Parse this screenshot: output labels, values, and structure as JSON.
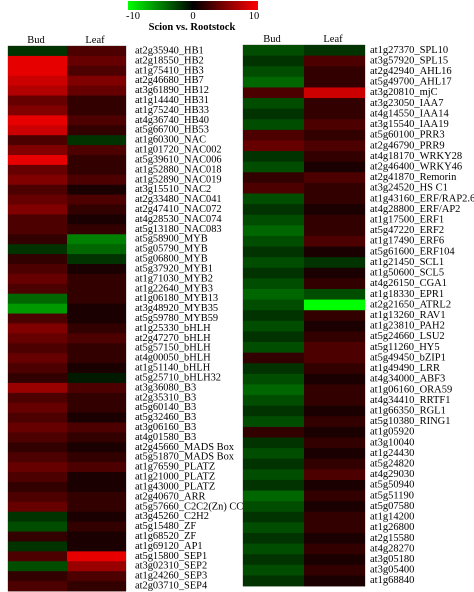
{
  "chart_data": {
    "type": "heatmap",
    "title": "Scion vs. Rootstock",
    "color_scale": {
      "min": -10,
      "mid": 0,
      "max": 10,
      "low_color": "#00ff00",
      "mid_color": "#000000",
      "high_color": "#ff0000",
      "tick_labels": [
        "-10",
        "0",
        "10"
      ]
    },
    "columns": [
      "Bud",
      "Leaf"
    ],
    "panels": [
      {
        "rows": [
          {
            "label": "at2g35940_HB1",
            "values": [
              -2,
              3
            ]
          },
          {
            "label": "at2g18550_HB2",
            "values": [
              9,
              4
            ]
          },
          {
            "label": "at1g75410_HB3",
            "values": [
              9,
              3
            ]
          },
          {
            "label": "at2g46680_HB7",
            "values": [
              8,
              5
            ]
          },
          {
            "label": "at3g61890_HB12",
            "values": [
              7,
              4
            ]
          },
          {
            "label": "at1g14440_HB31",
            "values": [
              4,
              2
            ]
          },
          {
            "label": "at1g75240_HB33",
            "values": [
              5,
              2
            ]
          },
          {
            "label": "at4g36740_HB40",
            "values": [
              9,
              3
            ]
          },
          {
            "label": "at5g66700_HB53",
            "values": [
              8,
              2
            ]
          },
          {
            "label": "at1g60300_NAC",
            "values": [
              3,
              -2
            ]
          },
          {
            "label": "at1g01720_NAC002",
            "values": [
              5,
              3
            ]
          },
          {
            "label": "at5g39610_NAC006",
            "values": [
              9,
              2
            ]
          },
          {
            "label": "at1g52880_NAC018",
            "values": [
              4,
              2
            ]
          },
          {
            "label": "at1g52890_NAC019",
            "values": [
              5,
              3
            ]
          },
          {
            "label": "at3g15510_NAC2",
            "values": [
              3,
              1
            ]
          },
          {
            "label": "at2g33480_NAC041",
            "values": [
              4,
              3
            ]
          },
          {
            "label": "at2g47410_NAC072",
            "values": [
              5,
              2
            ]
          },
          {
            "label": "at4g28530_NAC074",
            "values": [
              3,
              1
            ]
          },
          {
            "label": "at5g13180_NAC083",
            "values": [
              3,
              2
            ]
          },
          {
            "label": "at5g58900_MYB",
            "values": [
              2,
              -5
            ]
          },
          {
            "label": "at5g05790_MYB",
            "values": [
              -2,
              -4
            ]
          },
          {
            "label": "at5g06800_MYB",
            "values": [
              2,
              -2
            ]
          },
          {
            "label": "at5g37920_MYB1",
            "values": [
              3,
              1
            ]
          },
          {
            "label": "at1g71030_MYB2",
            "values": [
              4,
              2
            ]
          },
          {
            "label": "at1g22640_MYB3",
            "values": [
              3,
              2
            ]
          },
          {
            "label": "at1g06180_MYB13",
            "values": [
              -4,
              2
            ]
          },
          {
            "label": "at3g48920_MYB35",
            "values": [
              -6,
              1
            ]
          },
          {
            "label": "at5g59780_MYB59",
            "values": [
              3,
              1
            ]
          },
          {
            "label": "at1g25330_bHLH",
            "values": [
              5,
              2
            ]
          },
          {
            "label": "at2g47270_bHLH",
            "values": [
              4,
              3
            ]
          },
          {
            "label": "at5g57150_bHLH",
            "values": [
              3,
              2
            ]
          },
          {
            "label": "at4g00050_bHLH",
            "values": [
              4,
              2
            ]
          },
          {
            "label": "at1g51140_bHLH",
            "values": [
              3,
              1
            ]
          },
          {
            "label": "at5g25710_bHLH32",
            "values": [
              2,
              -1
            ]
          },
          {
            "label": "at3g36080_B3",
            "values": [
              6,
              3
            ]
          },
          {
            "label": "at2g35310_B3",
            "values": [
              3,
              2
            ]
          },
          {
            "label": "at5g60140_B3",
            "values": [
              4,
              2
            ]
          },
          {
            "label": "at5g32460_B3",
            "values": [
              3,
              1
            ]
          },
          {
            "label": "at3g06160_B3",
            "values": [
              4,
              3
            ]
          },
          {
            "label": "at4g01580_B3",
            "values": [
              3,
              2
            ]
          },
          {
            "label": "at2g45660_MADS Box",
            "values": [
              2,
              1
            ]
          },
          {
            "label": "at5g51870_MADS Box",
            "values": [
              3,
              2
            ]
          },
          {
            "label": "at1g76590_PLATZ",
            "values": [
              4,
              3
            ]
          },
          {
            "label": "at1g21000_PLATZ",
            "values": [
              3,
              1
            ]
          },
          {
            "label": "at1g43000_PLATZ",
            "values": [
              2,
              1
            ]
          },
          {
            "label": "at2g40670_ARR",
            "values": [
              3,
              2
            ]
          },
          {
            "label": "at5g57660_C2C2(Zn) CC",
            "values": [
              4,
              2
            ]
          },
          {
            "label": "at3g45260_C2H2",
            "values": [
              -2,
              1
            ]
          },
          {
            "label": "at5g15480_ZF",
            "values": [
              -3,
              2
            ]
          },
          {
            "label": "at1g68520_ZF",
            "values": [
              2,
              1
            ]
          },
          {
            "label": "at1g69120_AP1",
            "values": [
              -2,
              1
            ]
          },
          {
            "label": "at5g15800_SEP1",
            "values": [
              3,
              9
            ]
          },
          {
            "label": "at3g02310_SEP2",
            "values": [
              -3,
              6
            ]
          },
          {
            "label": "at1g24260_SEP3",
            "values": [
              2,
              3
            ]
          },
          {
            "label": "at2g03710_SEP4",
            "values": [
              3,
              2
            ]
          }
        ]
      },
      {
        "rows": [
          {
            "label": "at1g27370_SPL10",
            "values": [
              -3,
              -2
            ]
          },
          {
            "label": "at3g57920_SPL15",
            "values": [
              -2,
              3
            ]
          },
          {
            "label": "at2g42940_AHL16",
            "values": [
              -3,
              2
            ]
          },
          {
            "label": "at5g49700_AHL17",
            "values": [
              -4,
              2
            ]
          },
          {
            "label": "at3g20810_mjC",
            "values": [
              3,
              8
            ]
          },
          {
            "label": "at3g23050_IAA7",
            "values": [
              -3,
              2
            ]
          },
          {
            "label": "at4g14550_IAA14",
            "values": [
              -2,
              2
            ]
          },
          {
            "label": "at3g15540_IAA19",
            "values": [
              -3,
              3
            ]
          },
          {
            "label": "at5g60100_PRR3",
            "values": [
              3,
              2
            ]
          },
          {
            "label": "at2g46790_PRR9",
            "values": [
              4,
              3
            ]
          },
          {
            "label": "at4g18170_WRKY28",
            "values": [
              -2,
              2
            ]
          },
          {
            "label": "at2g46400_WRKY46",
            "values": [
              -3,
              1
            ]
          },
          {
            "label": "at2g41870_Remorin",
            "values": [
              2,
              3
            ]
          },
          {
            "label": "at3g24520_HS C1",
            "values": [
              3,
              2
            ]
          },
          {
            "label": "at1g43160_ERF/RAP2.6",
            "values": [
              -3,
              2
            ]
          },
          {
            "label": "at4g28800_ERF/AP2",
            "values": [
              -2,
              1
            ]
          },
          {
            "label": "at1g17500_ERF1",
            "values": [
              -3,
              2
            ]
          },
          {
            "label": "at5g47220_ERF2",
            "values": [
              -4,
              2
            ]
          },
          {
            "label": "at1g17490_ERF6",
            "values": [
              -3,
              3
            ]
          },
          {
            "label": "at5g61600_ERF104",
            "values": [
              -2,
              1
            ]
          },
          {
            "label": "at1g21450_SCL1",
            "values": [
              -3,
              -2
            ]
          },
          {
            "label": "at1g50600_SCL5",
            "values": [
              -2,
              1
            ]
          },
          {
            "label": "at4g26150_CGA1",
            "values": [
              -3,
              2
            ]
          },
          {
            "label": "at1g18330_EPR1",
            "values": [
              -4,
              -3
            ]
          },
          {
            "label": "at2g21650_ATRL2",
            "values": [
              -3,
              -10
            ]
          },
          {
            "label": "at1g13260_RAV1",
            "values": [
              -2,
              2
            ]
          },
          {
            "label": "at1g23810_PAH2",
            "values": [
              -3,
              1
            ]
          },
          {
            "label": "at5g24660_LSU2",
            "values": [
              -2,
              2
            ]
          },
          {
            "label": "at5g11260_HY5",
            "values": [
              -3,
              3
            ]
          },
          {
            "label": "at5g49450_bZIP1",
            "values": [
              2,
              3
            ]
          },
          {
            "label": "at1g49490_LRR",
            "values": [
              -2,
              2
            ]
          },
          {
            "label": "at4g34000_ABF3",
            "values": [
              -3,
              1
            ]
          },
          {
            "label": "at1g06160_ORA59",
            "values": [
              -4,
              2
            ]
          },
          {
            "label": "at4g34410_RRTF1",
            "values": [
              -3,
              2
            ]
          },
          {
            "label": "at1g66350_RGL1",
            "values": [
              -2,
              1
            ]
          },
          {
            "label": "at5g10380_RING1",
            "values": [
              -3,
              2
            ]
          },
          {
            "label": "at1g05920",
            "values": [
              2,
              1
            ]
          },
          {
            "label": "at3g10040",
            "values": [
              -2,
              2
            ]
          },
          {
            "label": "at1g24430",
            "values": [
              -3,
              1
            ]
          },
          {
            "label": "at5g24820",
            "values": [
              -2,
              2
            ]
          },
          {
            "label": "at4g29030",
            "values": [
              -3,
              3
            ]
          },
          {
            "label": "at5g50940",
            "values": [
              -2,
              1
            ]
          },
          {
            "label": "at5g51190",
            "values": [
              -4,
              2
            ]
          },
          {
            "label": "at5g07580",
            "values": [
              -3,
              1
            ]
          },
          {
            "label": "at1g14200",
            "values": [
              -2,
              2
            ]
          },
          {
            "label": "at1g26800",
            "values": [
              -3,
              2
            ]
          },
          {
            "label": "at2g15580",
            "values": [
              -2,
              1
            ]
          },
          {
            "label": "at4g28270",
            "values": [
              -3,
              2
            ]
          },
          {
            "label": "at3g05180",
            "values": [
              -2,
              1
            ]
          },
          {
            "label": "at3g05400",
            "values": [
              -3,
              2
            ]
          },
          {
            "label": "at1g68840",
            "values": [
              -2,
              1
            ]
          }
        ]
      }
    ]
  }
}
